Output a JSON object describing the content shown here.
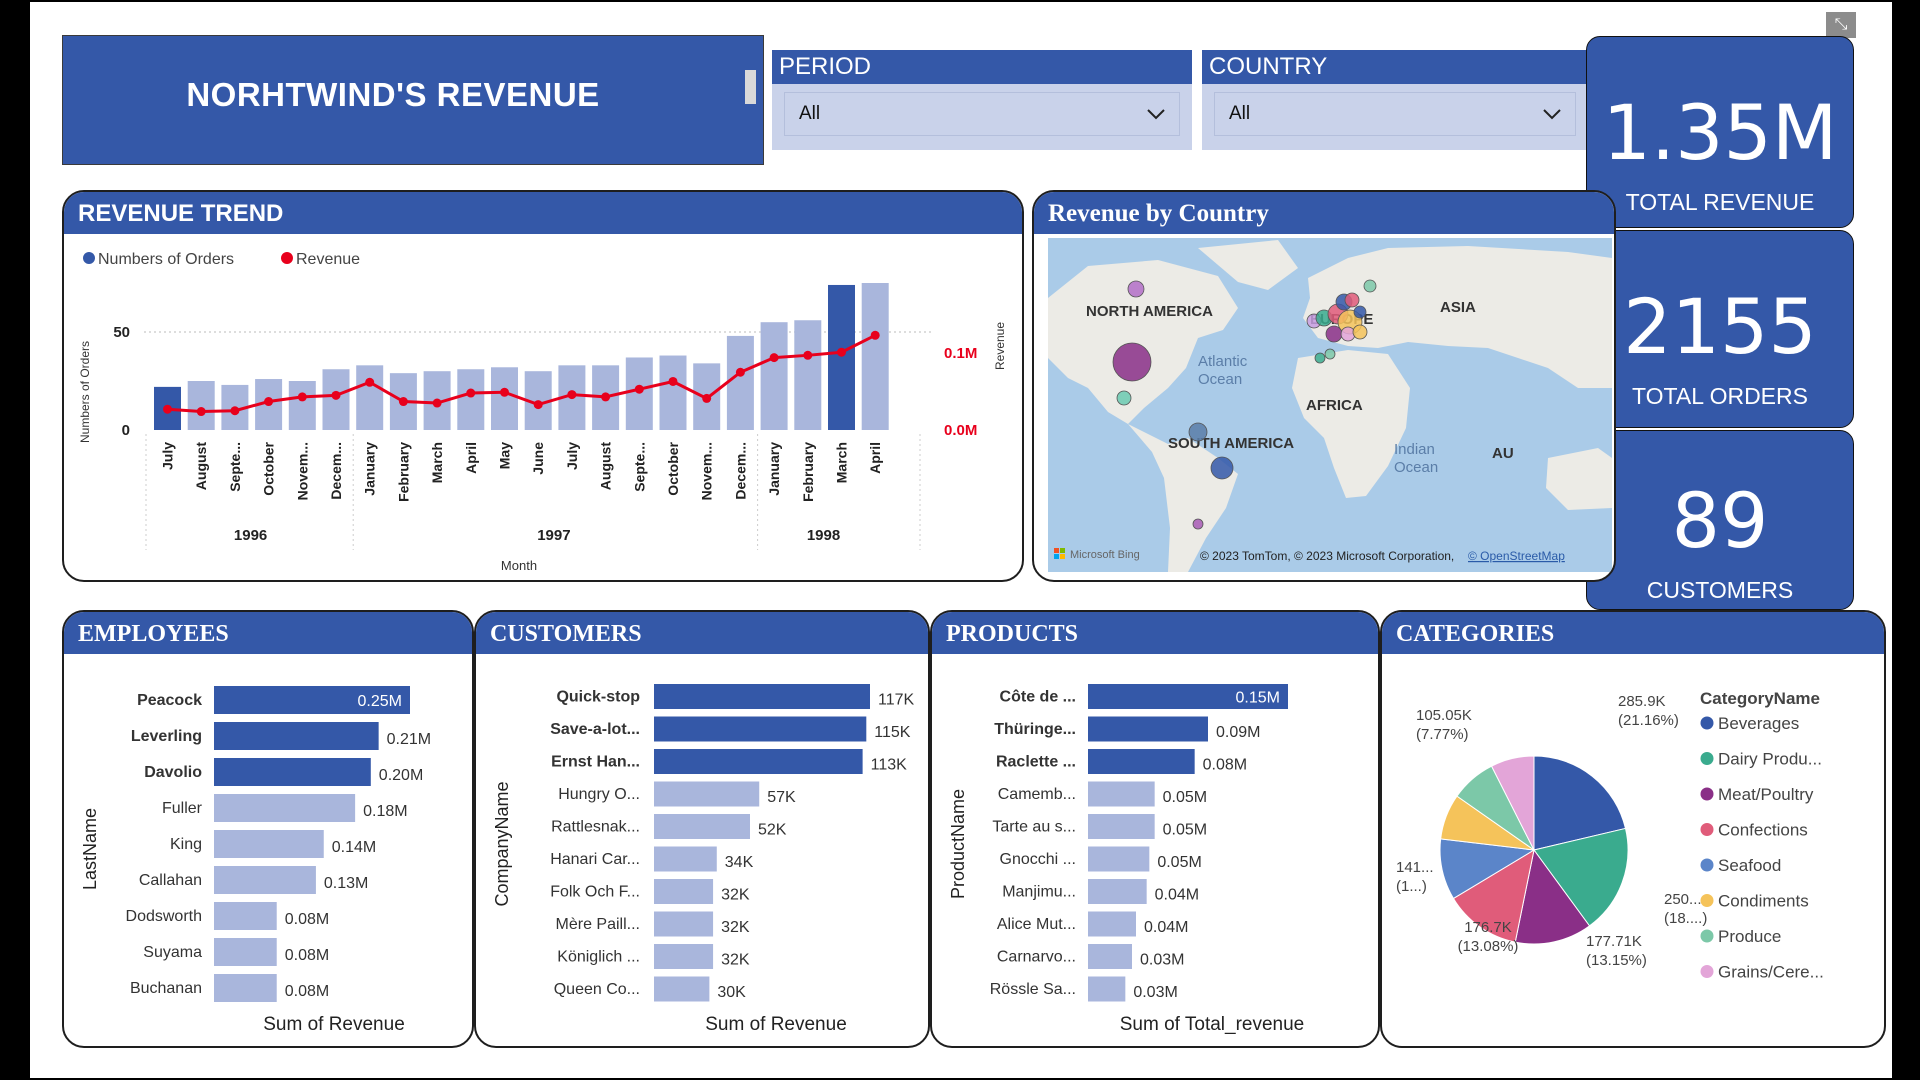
{
  "title": "NORHTWIND'S REVENUE",
  "period": {
    "label": "PERIOD",
    "value": "All"
  },
  "country": {
    "label": "COUNTRY",
    "value": "All"
  },
  "kpis": [
    {
      "value": "1.35M",
      "label": "TOTAL REVENUE"
    },
    {
      "value": "2155",
      "label": "TOTAL ORDERS"
    },
    {
      "value": "89",
      "label": "CUSTOMERS"
    }
  ],
  "trend": {
    "title": "REVENUE TREND",
    "legend": [
      "Numbers of Orders",
      "Revenue"
    ],
    "y_left_label": "Numbers of Orders",
    "y_right_label": "Revenue",
    "x_label": "Month",
    "left_ticks": [
      "50",
      "0"
    ],
    "right_ticks": [
      "0.1M",
      "0.0M"
    ],
    "years": [
      "1996",
      "1997",
      "1998"
    ],
    "colors": {
      "bar": "#a9b6dc",
      "bar_highlight": "#3458a8",
      "line": "#e8001c"
    }
  },
  "chart_data": {
    "type": "bar",
    "categories": [
      "July",
      "August",
      "Septe...",
      "October",
      "Novem...",
      "Decem...",
      "January",
      "February",
      "March",
      "April",
      "May",
      "June",
      "July",
      "August",
      "Septe...",
      "October",
      "Novem...",
      "Decem...",
      "January",
      "February",
      "March",
      "April"
    ],
    "year_groups": [
      {
        "year": "1996",
        "count": 6
      },
      {
        "year": "1997",
        "count": 12
      },
      {
        "year": "1998",
        "count": 4
      }
    ],
    "series": [
      {
        "name": "Numbers of Orders",
        "values": [
          22,
          25,
          23,
          26,
          25,
          31,
          33,
          29,
          30,
          31,
          32,
          30,
          33,
          33,
          37,
          38,
          34,
          48,
          55,
          56,
          74,
          75
        ]
      },
      {
        "name": "Revenue",
        "values": [
          0.027,
          0.024,
          0.025,
          0.037,
          0.043,
          0.045,
          0.062,
          0.037,
          0.035,
          0.048,
          0.049,
          0.033,
          0.046,
          0.043,
          0.053,
          0.063,
          0.041,
          0.075,
          0.094,
          0.097,
          0.101,
          0.123
        ]
      }
    ],
    "highlighted": [
      0,
      20
    ],
    "ylim_left": [
      0,
      75
    ],
    "ylim_right": [
      0,
      0.13
    ]
  },
  "map": {
    "title": "Revenue by Country",
    "labels": [
      "NORTH AMERICA",
      "EUROPE",
      "ASIA",
      "Atlantic\nOcean",
      "AFRICA",
      "SOUTH AMERICA",
      "Indian\nOcean",
      "AU"
    ],
    "logo": "Microsoft Bing",
    "copyright": "© 2023 TomTom, © 2023 Microsoft Corporation,",
    "osm_link": "© OpenStreetMap"
  },
  "employees": {
    "title": "EMPLOYEES",
    "axis": "LastName",
    "measure": "Sum of Revenue",
    "items": [
      {
        "name": "Peacock",
        "label": "0.25M",
        "value": 0.25
      },
      {
        "name": "Leverling",
        "label": "0.21M",
        "value": 0.21
      },
      {
        "name": "Davolio",
        "label": "0.20M",
        "value": 0.2
      },
      {
        "name": "Fuller",
        "label": "0.18M",
        "value": 0.18
      },
      {
        "name": "King",
        "label": "0.14M",
        "value": 0.14
      },
      {
        "name": "Callahan",
        "label": "0.13M",
        "value": 0.13
      },
      {
        "name": "Dodsworth",
        "label": "0.08M",
        "value": 0.08
      },
      {
        "name": "Suyama",
        "label": "0.08M",
        "value": 0.08
      },
      {
        "name": "Buchanan",
        "label": "0.08M",
        "value": 0.08
      }
    ]
  },
  "customers": {
    "title": "CUSTOMERS",
    "axis": "CompanyName",
    "measure": "Sum of Revenue",
    "items": [
      {
        "name": "Quick-stop",
        "label": "117K",
        "value": 117
      },
      {
        "name": "Save-a-lot...",
        "label": "115K",
        "value": 115
      },
      {
        "name": "Ernst Han...",
        "label": "113K",
        "value": 113
      },
      {
        "name": "Hungry O...",
        "label": "57K",
        "value": 57
      },
      {
        "name": "Rattlesnak...",
        "label": "52K",
        "value": 52
      },
      {
        "name": "Hanari Car...",
        "label": "34K",
        "value": 34
      },
      {
        "name": "Folk Och F...",
        "label": "32K",
        "value": 32
      },
      {
        "name": "Mère Paill...",
        "label": "32K",
        "value": 32
      },
      {
        "name": "Königlich ...",
        "label": "32K",
        "value": 32
      },
      {
        "name": "Queen Co...",
        "label": "30K",
        "value": 30
      }
    ]
  },
  "products": {
    "title": "PRODUCTS",
    "axis": "ProductName",
    "measure": "Sum of Total_revenue",
    "items": [
      {
        "name": "Côte de ...",
        "label": "0.15M",
        "value": 0.15
      },
      {
        "name": "Thüringe...",
        "label": "0.09M",
        "value": 0.09
      },
      {
        "name": "Raclette ...",
        "label": "0.08M",
        "value": 0.08
      },
      {
        "name": "Camemb...",
        "label": "0.05M",
        "value": 0.05
      },
      {
        "name": "Tarte au s...",
        "label": "0.05M",
        "value": 0.05
      },
      {
        "name": "Gnocchi ...",
        "label": "0.05M",
        "value": 0.046
      },
      {
        "name": "Manjimu...",
        "label": "0.04M",
        "value": 0.044
      },
      {
        "name": "Alice Mut...",
        "label": "0.04M",
        "value": 0.036
      },
      {
        "name": "Carnarvo...",
        "label": "0.03M",
        "value": 0.033
      },
      {
        "name": "Rössle Sa...",
        "label": "0.03M",
        "value": 0.028
      }
    ]
  },
  "categories": {
    "title": "CATEGORIES",
    "legend_title": "CategoryName",
    "slices": [
      {
        "name": "Beverages",
        "value": 285.9,
        "color": "#3458a8"
      },
      {
        "name": "Dairy Produ...",
        "value": 250.0,
        "color": "#3aab8e"
      },
      {
        "name": "Meat/Poultry",
        "value": 177.71,
        "color": "#8a2f87"
      },
      {
        "name": "Confections",
        "value": 176.7,
        "color": "#e05c7a"
      },
      {
        "name": "Seafood",
        "value": 141.0,
        "color": "#5b85c9"
      },
      {
        "name": "Condiments",
        "value": 105.05,
        "color": "#f5c35a"
      },
      {
        "name": "Produce",
        "value": 105.0,
        "color": "#7cc8a8"
      },
      {
        "name": "Grains/Cere...",
        "value": 100.0,
        "color": "#e3a5d8"
      }
    ],
    "slice_labels": [
      {
        "v": "285.9K",
        "p": "(21.16%)"
      },
      {
        "v": "250....",
        "p": "(18....)"
      },
      {
        "v": "177.71K",
        "p": "(13.15%)"
      },
      {
        "v": "176.7K",
        "p": "(13.08%)"
      },
      {
        "v": "141...",
        "p": "(1...)"
      },
      {
        "v": "105.05K",
        "p": "(7.77%)"
      }
    ]
  }
}
